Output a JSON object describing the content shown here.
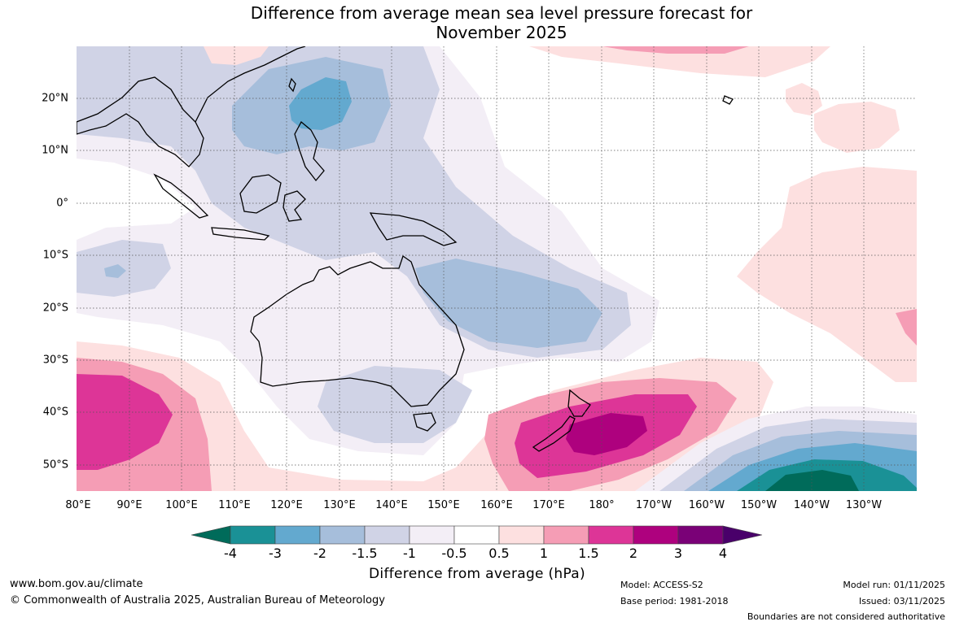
{
  "title": {
    "line1": "Difference from average mean sea level pressure forecast for",
    "line2": "November 2025"
  },
  "map": {
    "lon_range": [
      80,
      240
    ],
    "lat_range": [
      -55,
      30
    ],
    "lat_ticks": [
      "20°N",
      "10°N",
      "0°",
      "10°S",
      "20°S",
      "30°S",
      "40°S",
      "50°S"
    ],
    "lon_ticks": [
      "80°E",
      "90°E",
      "100°E",
      "110°E",
      "120°E",
      "130°E",
      "140°E",
      "150°E",
      "160°E",
      "170°E",
      "180°",
      "170°W",
      "160°W",
      "150°W",
      "140°W",
      "130°W"
    ]
  },
  "colorbar": {
    "title": "Difference from average (hPa)",
    "labels": [
      "-4",
      "-3",
      "-2",
      "-1.5",
      "-1",
      "-0.5",
      "0.5",
      "1",
      "1.5",
      "2",
      "3",
      "4"
    ],
    "colors": [
      "#006b5a",
      "#1a9196",
      "#63a9cf",
      "#a6bedb",
      "#d0d3e6",
      "#f3eef6",
      "#ffffff",
      "#fde0e0",
      "#f59db5",
      "#dd3597",
      "#ae017e",
      "#7a0177",
      "#49006a"
    ]
  },
  "footer": {
    "url": "www.bom.gov.au/climate",
    "copyright": "© Commonwealth of Australia 2025, Australian Bureau of Meteorology",
    "model": "Model: ACCESS-S2",
    "base_period": "Base period: 1981-2018",
    "model_run": "Model run: 01/11/2025",
    "issued": "Issued: 03/11/2025",
    "disclaimer": "Boundaries are not considered authoritative"
  }
}
